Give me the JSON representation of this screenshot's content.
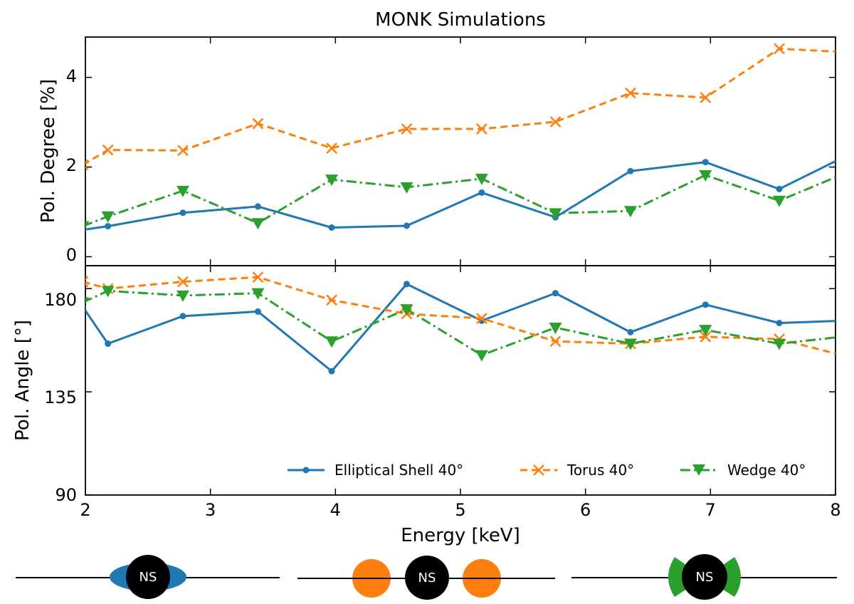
{
  "chart_data": {
    "type": "line",
    "title": "MONK Simulations",
    "xlabel": "Energy [keV]",
    "xlim": [
      2,
      8
    ],
    "x_ticks": [
      "2",
      "3",
      "4",
      "5",
      "6",
      "7",
      "8"
    ],
    "x": [
      1.98,
      2.18,
      2.78,
      3.38,
      3.97,
      4.57,
      5.17,
      5.76,
      6.36,
      6.96,
      7.55,
      8.05
    ],
    "panels": [
      {
        "id": "top",
        "ylabel": "Pol. Degree [%]",
        "ylim": [
          -0.2,
          4.9
        ],
        "y_ticks": [
          "0",
          "2",
          "4"
        ],
        "series": [
          {
            "name": "Elliptical Shell 40°",
            "color": "#1f77b4",
            "marker": "circle",
            "linestyle": "solid",
            "values": [
              0.6,
              0.68,
              0.98,
              1.12,
              0.65,
              0.69,
              1.43,
              0.88,
              1.91,
              2.11,
              1.51,
              2.2
            ]
          },
          {
            "name": "Torus 40°",
            "color": "#ff7f0e",
            "marker": "x",
            "linestyle": "dashed",
            "values": [
              2.05,
              2.38,
              2.37,
              2.97,
              2.42,
              2.85,
              2.85,
              3.01,
              3.65,
              3.55,
              4.64,
              4.57
            ]
          },
          {
            "name": "Wedge 40°",
            "color": "#2ca02c",
            "marker": "triangle-down",
            "linestyle": "dashdot",
            "values": [
              0.68,
              0.9,
              1.47,
              0.75,
              1.72,
              1.55,
              1.74,
              0.97,
              1.02,
              1.82,
              1.25,
              1.83
            ]
          }
        ]
      },
      {
        "id": "bottom",
        "ylabel": "Pol. Angle [°]",
        "ylim": [
          90,
          190
        ],
        "y_ticks": [
          "90",
          "135",
          "180"
        ],
        "series": [
          {
            "name": "Elliptical Shell 40°",
            "color": "#1f77b4",
            "marker": "circle",
            "linestyle": "solid",
            "values": [
              172,
              156,
              168,
              170,
              144,
              182,
              166,
              178,
              161,
              173,
              165,
              166
            ]
          },
          {
            "name": "Torus 40°",
            "color": "#ff7f0e",
            "marker": "x",
            "linestyle": "dashed",
            "values": [
              183,
              180,
              183,
              185,
              175,
              169,
              167,
              157,
              156,
              159,
              158,
              151
            ]
          },
          {
            "name": "Wedge 40°",
            "color": "#2ca02c",
            "marker": "triangle-down",
            "linestyle": "dashdot",
            "values": [
              174,
              179,
              177,
              178,
              157,
              171,
              151,
              163,
              156,
              162,
              156,
              159
            ]
          }
        ]
      }
    ],
    "legend": {
      "placement": "lower-right of bottom panel",
      "entries": [
        "Elliptical Shell 40°",
        "Torus 40°",
        "Wedge 40°"
      ]
    }
  },
  "diagrams": [
    {
      "name": "elliptical-shell",
      "label": "NS",
      "color": "#1f77b4"
    },
    {
      "name": "torus",
      "label": "NS",
      "color": "#ff7f0e"
    },
    {
      "name": "wedge",
      "label": "NS",
      "color": "#2ca02c"
    }
  ]
}
